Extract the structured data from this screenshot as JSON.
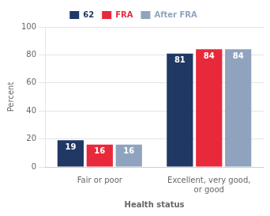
{
  "chart_data": {
    "type": "bar",
    "categories": [
      "Fair or poor",
      "Excellent, very good,\nor good"
    ],
    "series": [
      {
        "name": "62",
        "color": "#1f3864",
        "values": [
          19,
          81
        ]
      },
      {
        "name": "FRA",
        "color": "#e8293b",
        "values": [
          16,
          84
        ]
      },
      {
        "name": "After FRA",
        "color": "#8fa3bf",
        "values": [
          16,
          84
        ]
      }
    ],
    "ylabel": "Percent",
    "xlabel": "Health status",
    "ylim": [
      0,
      100
    ],
    "yticks": [
      0,
      20,
      40,
      60,
      80,
      100
    ],
    "grid": true,
    "legend": "top",
    "data_labels": true
  }
}
